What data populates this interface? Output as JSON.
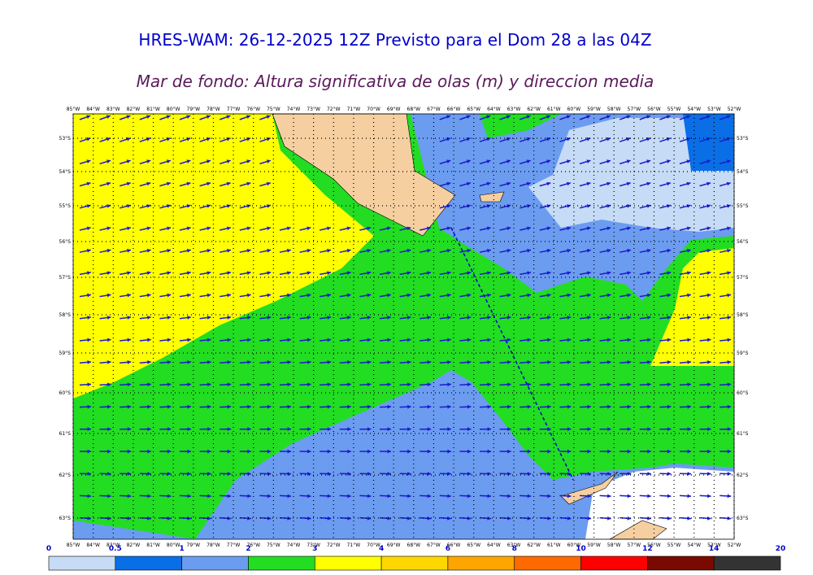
{
  "header": {
    "title": "HRES-WAM: 26-12-2025 12Z Previsto para el Dom 28 a las 04Z",
    "subtitle": "Mar de fondo: Altura significativa de olas (m) y direccion media"
  },
  "map": {
    "lon_labels": [
      "85°W",
      "84°W",
      "83°W",
      "82°W",
      "81°W",
      "80°W",
      "79°W",
      "78°W",
      "77°W",
      "76°W",
      "75°W",
      "74°W",
      "73°W",
      "72°W",
      "71°W",
      "70°W",
      "69°W",
      "68°W",
      "67°W",
      "66°W",
      "65°W",
      "64°W",
      "63°W",
      "62°W",
      "61°W",
      "60°W",
      "59°W",
      "58°W",
      "57°W",
      "56°W",
      "55°W",
      "54°W",
      "53°W",
      "52°W"
    ],
    "lat_labels": [
      "53°S",
      "54°S",
      "55°S",
      "56°S",
      "57°S",
      "58°S",
      "59°S",
      "60°S",
      "61°S",
      "62°S",
      "63°S"
    ]
  },
  "colorbar": {
    "bounds": [
      0,
      0.5,
      1,
      2,
      3,
      4,
      6,
      8,
      10,
      12,
      14,
      20
    ],
    "colors": [
      "#c6dbf5",
      "#0a6ee6",
      "#6b9cf0",
      "#22dd22",
      "#ffff00",
      "#ffd700",
      "#ffa500",
      "#ff6a00",
      "#ff0000",
      "#7a0a00",
      "#333333"
    ]
  }
}
